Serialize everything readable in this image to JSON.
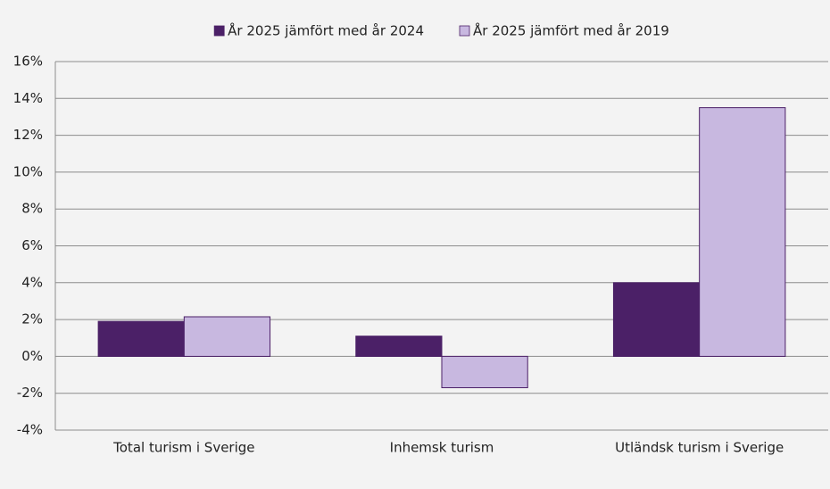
{
  "chart_data": {
    "type": "bar",
    "categories": [
      "Total turism i Sverige",
      "Inhemsk turism",
      "Utländsk turism i Sverige"
    ],
    "series": [
      {
        "name": "År 2025 jämfört med år 2024",
        "color": "#4b2067",
        "values": [
          1.9,
          1.1,
          4.0
        ]
      },
      {
        "name": "År 2025 jämfört med år 2019",
        "color": "#c8b8e0",
        "values": [
          2.15,
          -1.7,
          13.5
        ]
      }
    ],
    "ylim": [
      -4,
      16
    ],
    "yticks": [
      {
        "value": -4,
        "label": "-4%"
      },
      {
        "value": -2,
        "label": "-2%"
      },
      {
        "value": 0,
        "label": "0%"
      },
      {
        "value": 2,
        "label": "2%"
      },
      {
        "value": 4,
        "label": "4%"
      },
      {
        "value": 6,
        "label": "6%"
      },
      {
        "value": 8,
        "label": "8%"
      },
      {
        "value": 10,
        "label": "10%"
      },
      {
        "value": 12,
        "label": "12%"
      },
      {
        "value": 14,
        "label": "14%"
      },
      {
        "value": 16,
        "label": "16%"
      }
    ],
    "grid": true,
    "legend": "top"
  }
}
